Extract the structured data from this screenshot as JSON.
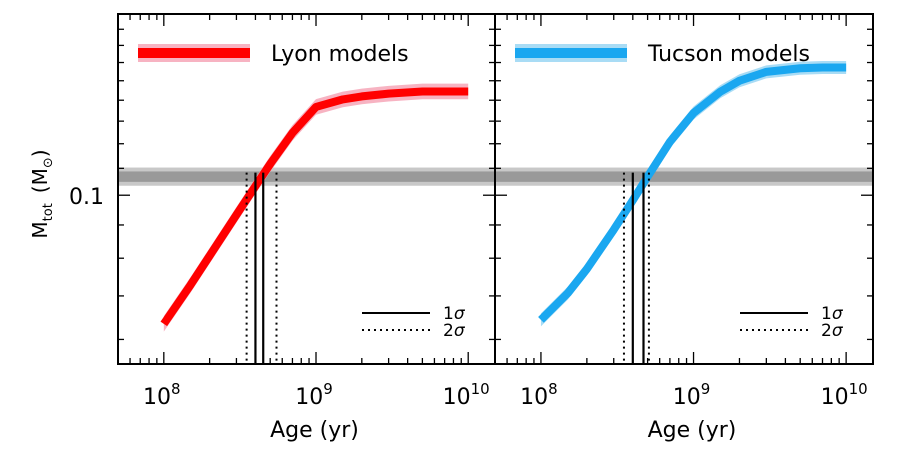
{
  "chart_data": [
    {
      "type": "line",
      "panel": "left",
      "xscale": "log",
      "yscale": "log",
      "xlim": [
        50000000,
        15000000000
      ],
      "ylim": [
        0.055,
        0.19
      ],
      "xlabel": "Age (yr)",
      "ylabel_main": "M",
      "ylabel_sub": "tot",
      "ylabel_unit": "(M",
      "ylabel_unit_close": ")",
      "y_tick_label": "0.1",
      "x_tick_labels": [
        {
          "base": "10",
          "exp": "8",
          "value": 100000000
        },
        {
          "base": "10",
          "exp": "9",
          "value": 1000000000
        },
        {
          "base": "10",
          "exp": "10",
          "value": 10000000000
        }
      ],
      "legend": "top-left",
      "series": [
        {
          "name": "Lyon models",
          "color": "#ff0000",
          "band_color": "#f7b3c2",
          "x": [
            100000000,
            150000000,
            200000000,
            300000000,
            400000000,
            500000000,
            700000000,
            1000000000,
            1500000000,
            2000000000,
            3000000000,
            5000000000,
            7000000000,
            10000000000
          ],
          "y": [
            0.0634,
            0.0728,
            0.0807,
            0.0933,
            0.1033,
            0.1117,
            0.1247,
            0.1367,
            0.1404,
            0.1419,
            0.1433,
            0.1444,
            0.1444,
            0.1444
          ],
          "band_width_dex": 0.012
        }
      ],
      "reference_band": {
        "center": 0.1068,
        "inner_half_dex": 0.008,
        "outer_half_dex": 0.014,
        "inner_color": "#999999",
        "outer_color": "#c8c8c8"
      },
      "confidence_lines": [
        {
          "label": "1σ",
          "style": "solid",
          "x": [
            400000000,
            450000000
          ]
        },
        {
          "label": "2σ",
          "style": "dotted",
          "x": [
            350000000,
            550000000
          ]
        }
      ],
      "interval_legend": [
        {
          "symbol": "1",
          "greek": "σ",
          "style": "solid"
        },
        {
          "symbol": "2",
          "greek": "σ",
          "style": "dotted"
        }
      ]
    },
    {
      "type": "line",
      "panel": "right",
      "xscale": "log",
      "yscale": "log",
      "xlim": [
        50000000,
        15000000000
      ],
      "ylim": [
        0.055,
        0.19
      ],
      "xlabel": "Age (yr)",
      "x_tick_labels": [
        {
          "base": "10",
          "exp": "8",
          "value": 100000000
        },
        {
          "base": "10",
          "exp": "9",
          "value": 1000000000
        },
        {
          "base": "10",
          "exp": "10",
          "value": 10000000000
        }
      ],
      "legend": "top-left",
      "series": [
        {
          "name": "Tucson models",
          "color": "#1aa7f0",
          "band_color": "#a9dcf5",
          "x": [
            100000000,
            150000000,
            200000000,
            300000000,
            400000000,
            500000000,
            700000000,
            1000000000,
            1500000000,
            2000000000,
            3000000000,
            5000000000,
            7000000000,
            10000000000
          ],
          "y": [
            0.0643,
            0.0707,
            0.077,
            0.0885,
            0.0982,
            0.1068,
            0.1208,
            0.1338,
            0.1443,
            0.15,
            0.1548,
            0.1568,
            0.1572,
            0.1572
          ],
          "band_width_dex": 0.01
        }
      ],
      "reference_band": {
        "center": 0.1068,
        "inner_half_dex": 0.008,
        "outer_half_dex": 0.014,
        "inner_color": "#999999",
        "outer_color": "#c8c8c8"
      },
      "confidence_lines": [
        {
          "label": "1σ",
          "style": "solid",
          "x": [
            400000000,
            470000000
          ]
        },
        {
          "label": "2σ",
          "style": "dotted",
          "x": [
            350000000,
            510000000
          ]
        }
      ],
      "interval_legend": [
        {
          "symbol": "1",
          "greek": "σ",
          "style": "solid"
        },
        {
          "symbol": "2",
          "greek": "σ",
          "style": "dotted"
        }
      ]
    }
  ]
}
